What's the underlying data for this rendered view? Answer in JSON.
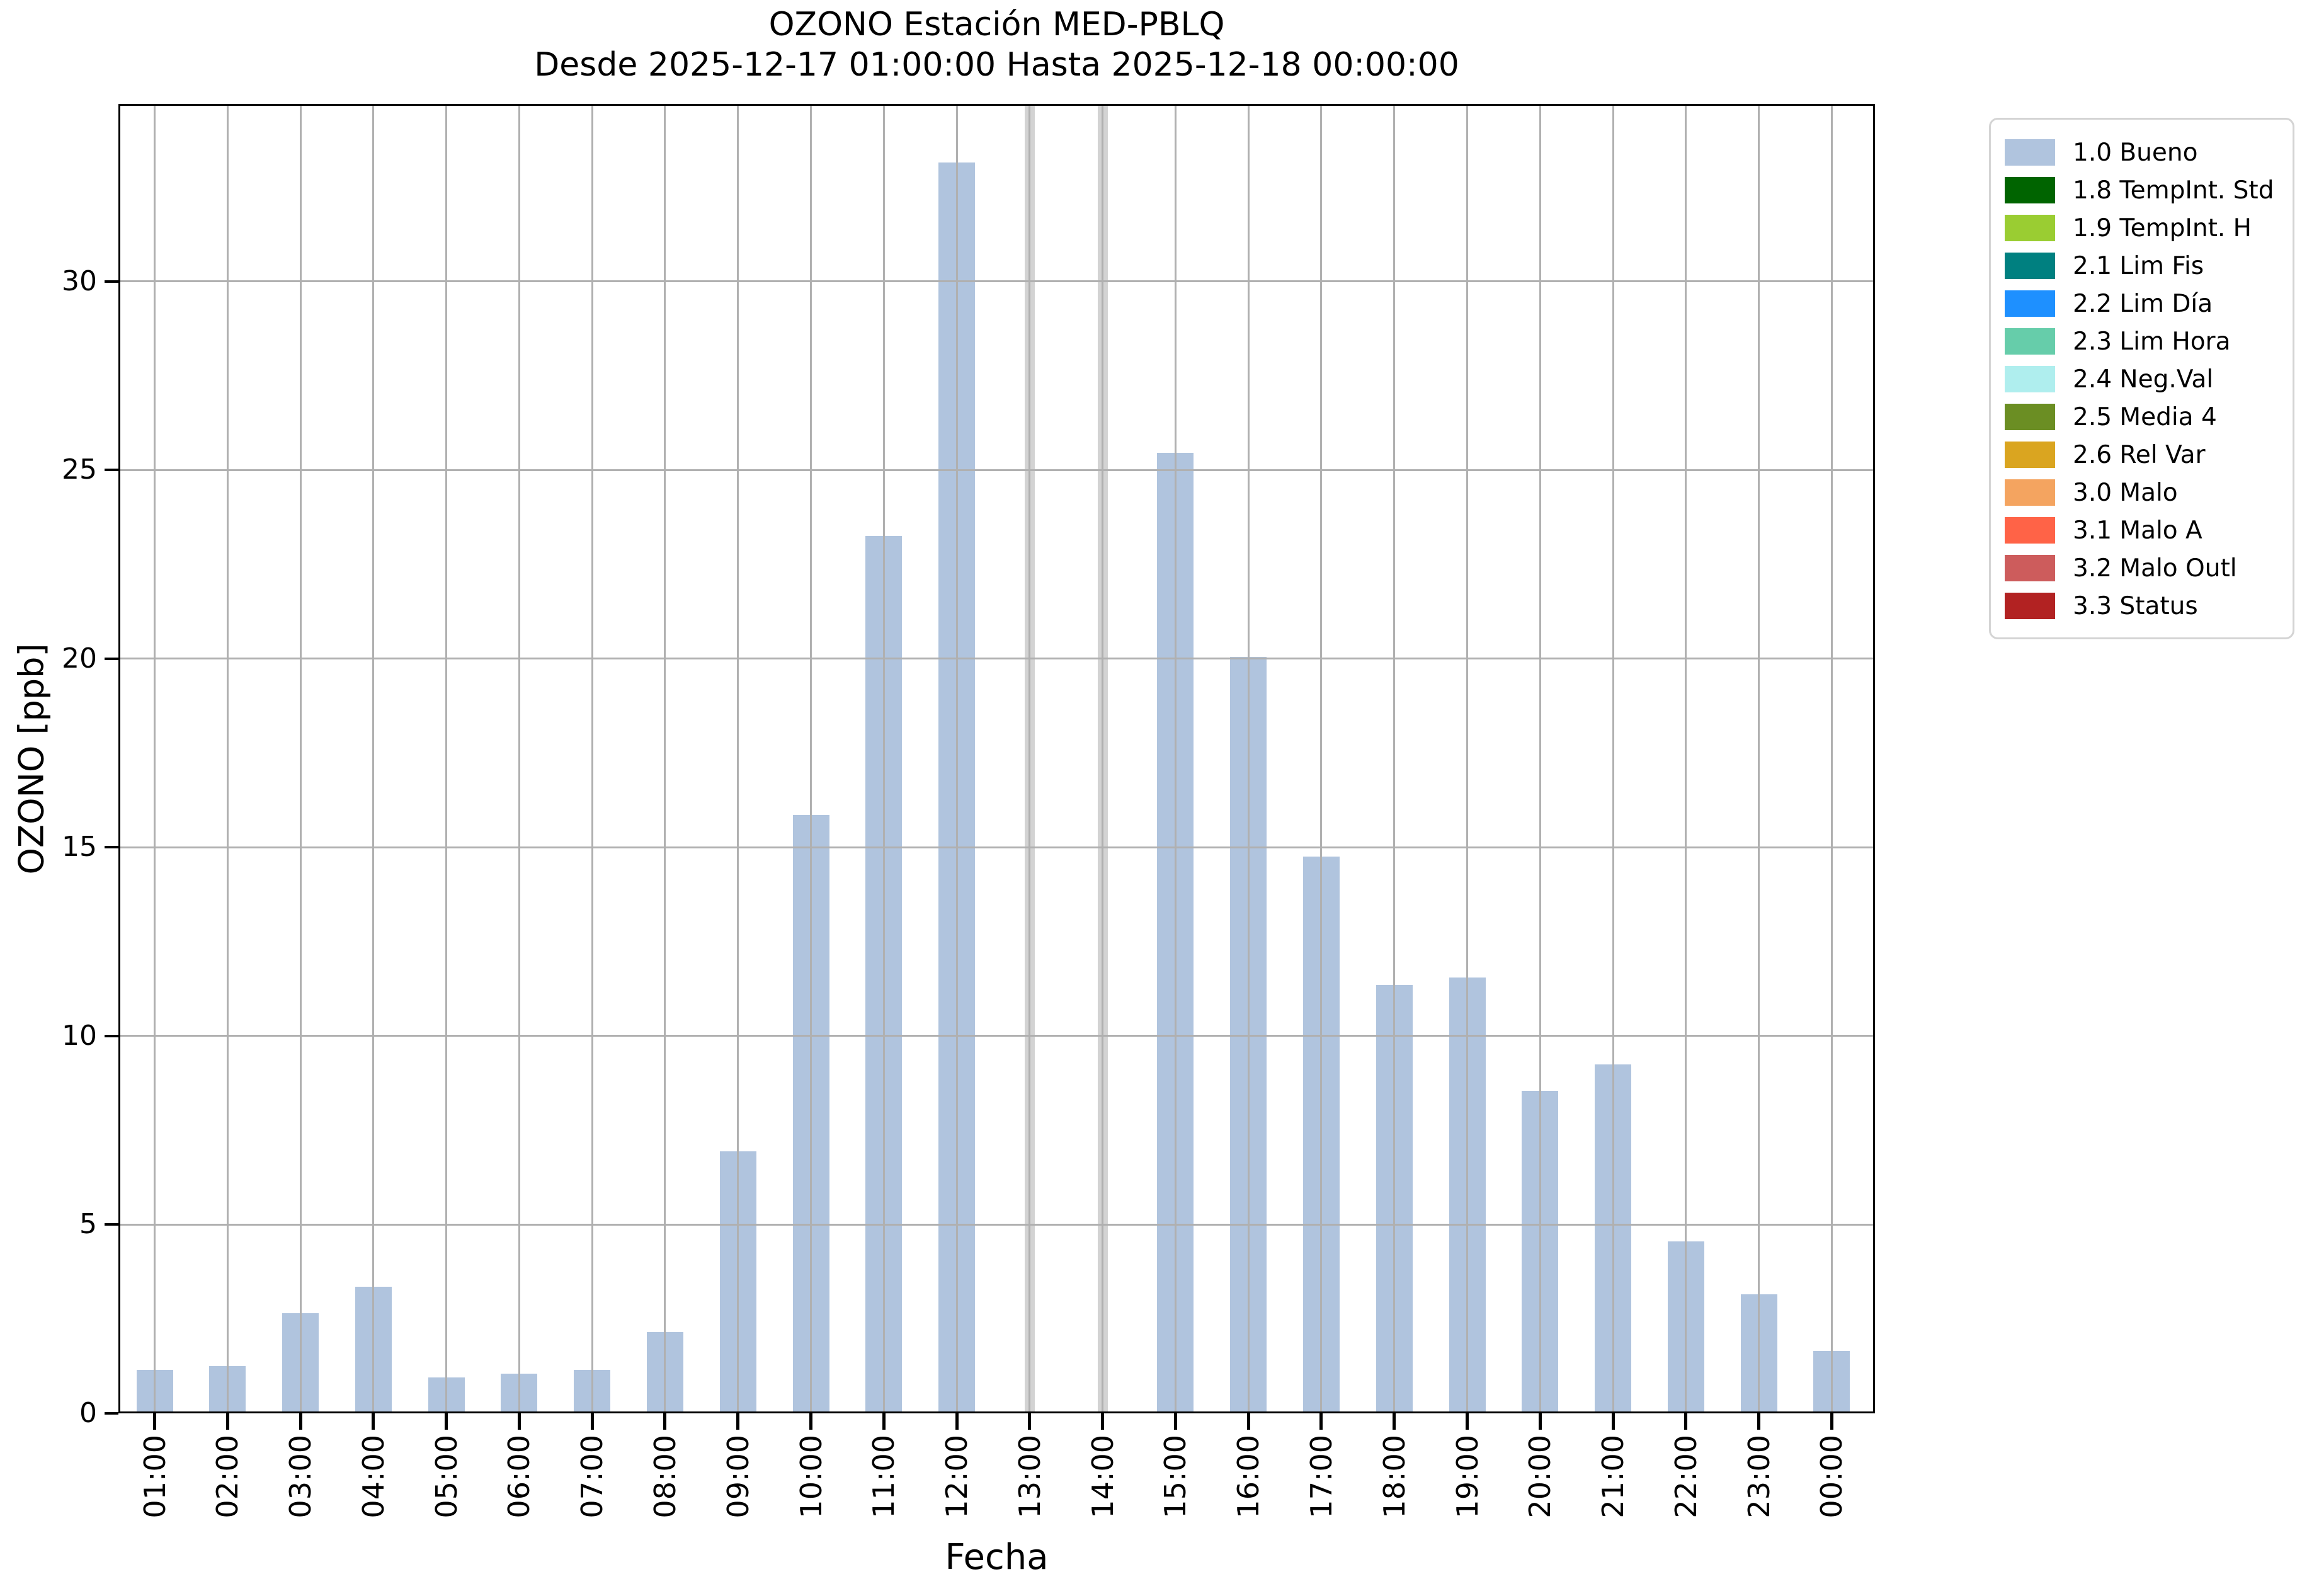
{
  "figure": {
    "title": "OZONO Estación MED-PBLQ",
    "subtitle": "Desde 2025-12-17 01:00:00 Hasta 2025-12-18 00:00:00",
    "xlabel": "Fecha",
    "ylabel": "OZONO [ppb]"
  },
  "chart_data": {
    "type": "bar",
    "title": "OZONO Estación MED-PBLQ",
    "subtitle": "Desde 2025-12-17 01:00:00 Hasta 2025-12-18 00:00:00",
    "xlabel": "Fecha",
    "ylabel": "OZONO [ppb]",
    "categories": [
      "01:00",
      "02:00",
      "03:00",
      "04:00",
      "05:00",
      "06:00",
      "07:00",
      "08:00",
      "09:00",
      "10:00",
      "11:00",
      "12:00",
      "13:00",
      "14:00",
      "15:00",
      "16:00",
      "17:00",
      "18:00",
      "19:00",
      "20:00",
      "21:00",
      "22:00",
      "23:00",
      "00:00"
    ],
    "values": [
      1.1,
      1.2,
      2.6,
      3.3,
      0.9,
      1.0,
      1.1,
      2.1,
      6.9,
      15.8,
      23.2,
      33.1,
      null,
      null,
      25.4,
      20.0,
      14.7,
      11.3,
      11.5,
      8.5,
      9.2,
      4.5,
      3.1,
      1.6
    ],
    "missing_categories": [
      "13:00",
      "14:00"
    ],
    "yticks": [
      0,
      5,
      10,
      15,
      20,
      25,
      30
    ],
    "ylim": [
      0,
      34.7
    ],
    "grid": true,
    "legend_position": "upper right outside",
    "colors": {
      "bar": "#b0c4de",
      "grid": "#b0b0b0",
      "missing_band": "#d3d3d3",
      "axis": "#000000"
    },
    "legend": [
      {
        "label": "1.0 Bueno",
        "color": "#b0c4de"
      },
      {
        "label": "1.8 TempInt. Std",
        "color": "#006400"
      },
      {
        "label": "1.9 TempInt. H",
        "color": "#9acd32"
      },
      {
        "label": "2.1 Lim Fis",
        "color": "#008080"
      },
      {
        "label": "2.2 Lim Día",
        "color": "#1e90ff"
      },
      {
        "label": "2.3 Lim Hora",
        "color": "#66cdaa"
      },
      {
        "label": "2.4 Neg.Val",
        "color": "#afeeee"
      },
      {
        "label": "2.5 Media 4",
        "color": "#6b8e23"
      },
      {
        "label": "2.6 Rel Var",
        "color": "#daa520"
      },
      {
        "label": "3.0 Malo",
        "color": "#f4a460"
      },
      {
        "label": "3.1 Malo A",
        "color": "#ff6347"
      },
      {
        "label": "3.2 Malo Outl",
        "color": "#cd5c5c"
      },
      {
        "label": "3.3 Status",
        "color": "#b22222"
      }
    ]
  }
}
